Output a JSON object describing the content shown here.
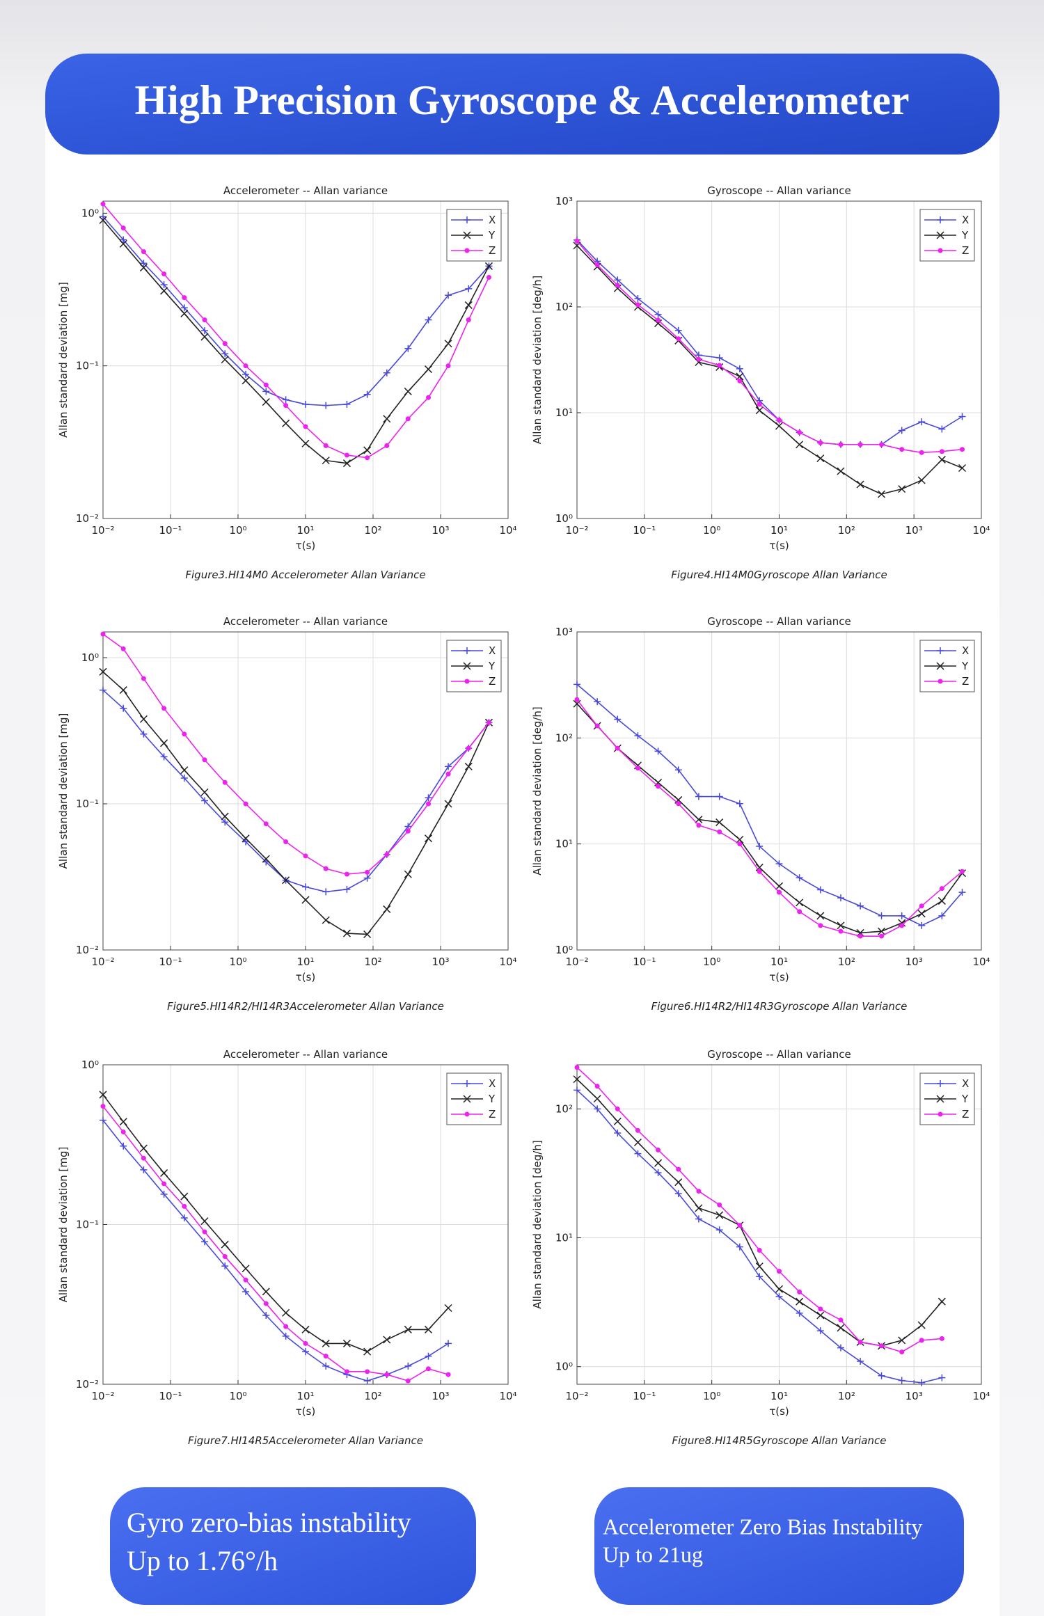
{
  "header": {
    "title": "High Precision Gyroscope & Accelerometer"
  },
  "chart_data": [
    {
      "type": "line",
      "title": "Accelerometer -- Allan variance",
      "xlabel": "τ(s)",
      "ylabel": "Allan standard deviation [mg]",
      "caption": "Figure3.HI14M0 Accelerometer Allan Variance",
      "xscale": "log",
      "yscale": "log",
      "grid": true,
      "legend": "upper right",
      "xlim": [
        0.01,
        10000
      ],
      "ylim": [
        0.01,
        1.2
      ],
      "xticks": [
        {
          "value": 0.01,
          "label": "10⁻²"
        },
        {
          "value": 0.1,
          "label": "10⁻¹"
        },
        {
          "value": 1,
          "label": "10⁰"
        },
        {
          "value": 10,
          "label": "10¹"
        },
        {
          "value": 100,
          "label": "10²"
        },
        {
          "value": 1000,
          "label": "10³"
        },
        {
          "value": 10000,
          "label": "10⁴"
        }
      ],
      "yticks": [
        {
          "value": 0.01,
          "label": "10⁻²"
        },
        {
          "value": 0.1,
          "label": "10⁻¹"
        },
        {
          "value": 1,
          "label": "10⁰"
        }
      ],
      "x": [
        0.01,
        0.02,
        0.04,
        0.08,
        0.16,
        0.32,
        0.64,
        1.3,
        2.6,
        5.1,
        10,
        20,
        41,
        82,
        160,
        330,
        660,
        1300,
        2600,
        5200
      ],
      "series": [
        {
          "name": "X",
          "color": "#4848dc",
          "marker": "+",
          "values": [
            0.95,
            0.67,
            0.47,
            0.34,
            0.24,
            0.17,
            0.12,
            0.088,
            0.068,
            0.06,
            0.056,
            0.055,
            0.056,
            0.065,
            0.09,
            0.13,
            0.2,
            0.29,
            0.32,
            0.45
          ]
        },
        {
          "name": "Y",
          "color": "#222222",
          "marker": "x",
          "values": [
            0.9,
            0.63,
            0.44,
            0.31,
            0.22,
            0.155,
            0.11,
            0.08,
            0.058,
            0.042,
            0.031,
            0.024,
            0.023,
            0.028,
            0.045,
            0.068,
            0.095,
            0.14,
            0.25,
            0.45
          ]
        },
        {
          "name": "Z",
          "color": "#ee22ee",
          "marker": "*",
          "values": [
            1.15,
            0.8,
            0.56,
            0.4,
            0.28,
            0.2,
            0.14,
            0.1,
            0.075,
            0.055,
            0.04,
            0.03,
            0.026,
            0.025,
            0.03,
            0.045,
            0.062,
            0.1,
            0.2,
            0.38
          ]
        }
      ]
    },
    {
      "type": "line",
      "title": "Gyroscope -- Allan variance",
      "xlabel": "τ(s)",
      "ylabel": "Allan standard deviation [deg/h]",
      "caption": "Figure4.HI14M0Gyroscope Allan Variance",
      "xscale": "log",
      "yscale": "log",
      "grid": true,
      "legend": "upper right",
      "xlim": [
        0.01,
        10000
      ],
      "ylim": [
        1,
        1000
      ],
      "xticks": [
        {
          "value": 0.01,
          "label": "10⁻²"
        },
        {
          "value": 0.1,
          "label": "10⁻¹"
        },
        {
          "value": 1,
          "label": "10⁰"
        },
        {
          "value": 10,
          "label": "10¹"
        },
        {
          "value": 100,
          "label": "10²"
        },
        {
          "value": 1000,
          "label": "10³"
        },
        {
          "value": 10000,
          "label": "10⁴"
        }
      ],
      "yticks": [
        {
          "value": 1,
          "label": "10⁰"
        },
        {
          "value": 10,
          "label": "10¹"
        },
        {
          "value": 100,
          "label": "10²"
        },
        {
          "value": 1000,
          "label": "10³"
        }
      ],
      "x": [
        0.01,
        0.02,
        0.04,
        0.08,
        0.16,
        0.32,
        0.64,
        1.3,
        2.6,
        5.1,
        10,
        20,
        41,
        82,
        160,
        330,
        660,
        1300,
        2600,
        5200
      ],
      "series": [
        {
          "name": "X",
          "color": "#4848dc",
          "marker": "+",
          "values": [
            430,
            270,
            180,
            120,
            85,
            60,
            35,
            33,
            26,
            13,
            8.5,
            6.5,
            5.2,
            5,
            5,
            5,
            6.8,
            8.2,
            7,
            9.2
          ]
        },
        {
          "name": "Y",
          "color": "#222222",
          "marker": "x",
          "values": [
            380,
            240,
            150,
            100,
            70,
            48,
            30,
            27,
            22,
            10.5,
            7.5,
            5,
            3.7,
            2.8,
            2.1,
            1.7,
            1.9,
            2.3,
            3.6,
            3
          ]
        },
        {
          "name": "Z",
          "color": "#ee22ee",
          "marker": "*",
          "values": [
            420,
            250,
            160,
            105,
            75,
            50,
            32,
            28,
            20,
            12,
            8.5,
            6.5,
            5.2,
            5,
            5,
            5,
            4.5,
            4.2,
            4.3,
            4.5
          ]
        }
      ]
    },
    {
      "type": "line",
      "title": "Accelerometer -- Allan variance",
      "xlabel": "τ(s)",
      "ylabel": "Allan standard deviation [mg]",
      "caption": "Figure5.HI14R2/HI14R3Accelerometer Allan Variance",
      "xscale": "log",
      "yscale": "log",
      "grid": true,
      "legend": "upper right",
      "xlim": [
        0.01,
        10000
      ],
      "ylim": [
        0.01,
        1.5
      ],
      "xticks": [
        {
          "value": 0.01,
          "label": "10⁻²"
        },
        {
          "value": 0.1,
          "label": "10⁻¹"
        },
        {
          "value": 1,
          "label": "10⁰"
        },
        {
          "value": 10,
          "label": "10¹"
        },
        {
          "value": 100,
          "label": "10²"
        },
        {
          "value": 1000,
          "label": "10³"
        },
        {
          "value": 10000,
          "label": "10⁴"
        }
      ],
      "yticks": [
        {
          "value": 0.01,
          "label": "10⁻²"
        },
        {
          "value": 0.1,
          "label": "10⁻¹"
        },
        {
          "value": 1,
          "label": "10⁰"
        }
      ],
      "x": [
        0.01,
        0.02,
        0.04,
        0.08,
        0.16,
        0.32,
        0.64,
        1.3,
        2.6,
        5.1,
        10,
        20,
        41,
        82,
        160,
        330,
        660,
        1300,
        2600,
        5200
      ],
      "series": [
        {
          "name": "X",
          "color": "#4848dc",
          "marker": "+",
          "values": [
            0.6,
            0.45,
            0.3,
            0.21,
            0.15,
            0.105,
            0.075,
            0.055,
            0.04,
            0.03,
            0.027,
            0.025,
            0.026,
            0.031,
            0.045,
            0.07,
            0.11,
            0.18,
            0.24,
            0.36
          ]
        },
        {
          "name": "Y",
          "color": "#222222",
          "marker": "x",
          "values": [
            0.8,
            0.6,
            0.38,
            0.26,
            0.17,
            0.12,
            0.082,
            0.058,
            0.042,
            0.03,
            0.022,
            0.016,
            0.013,
            0.0128,
            0.019,
            0.033,
            0.058,
            0.1,
            0.18,
            0.36
          ]
        },
        {
          "name": "Z",
          "color": "#ee22ee",
          "marker": "*",
          "values": [
            1.45,
            1.15,
            0.72,
            0.45,
            0.3,
            0.2,
            0.14,
            0.1,
            0.073,
            0.055,
            0.044,
            0.036,
            0.033,
            0.034,
            0.045,
            0.065,
            0.1,
            0.16,
            0.24,
            0.36
          ]
        }
      ]
    },
    {
      "type": "line",
      "title": "Gyroscope -- Allan variance",
      "xlabel": "τ(s)",
      "ylabel": "Allan standard deviation [deg/h]",
      "caption": "Figure6.HI14R2/HI14R3Gyroscope Allan Variance",
      "xscale": "log",
      "yscale": "log",
      "grid": true,
      "legend": "upper right",
      "xlim": [
        0.01,
        10000
      ],
      "ylim": [
        1,
        1000
      ],
      "xticks": [
        {
          "value": 0.01,
          "label": "10⁻²"
        },
        {
          "value": 0.1,
          "label": "10⁻¹"
        },
        {
          "value": 1,
          "label": "10⁰"
        },
        {
          "value": 10,
          "label": "10¹"
        },
        {
          "value": 100,
          "label": "10²"
        },
        {
          "value": 1000,
          "label": "10³"
        },
        {
          "value": 10000,
          "label": "10⁴"
        }
      ],
      "yticks": [
        {
          "value": 1,
          "label": "10⁰"
        },
        {
          "value": 10,
          "label": "10¹"
        },
        {
          "value": 100,
          "label": "10²"
        },
        {
          "value": 1000,
          "label": "10³"
        }
      ],
      "x": [
        0.01,
        0.02,
        0.04,
        0.08,
        0.16,
        0.32,
        0.64,
        1.3,
        2.6,
        5.1,
        10,
        20,
        41,
        82,
        160,
        330,
        660,
        1300,
        2600,
        5200
      ],
      "series": [
        {
          "name": "X",
          "color": "#4848dc",
          "marker": "+",
          "values": [
            320,
            220,
            150,
            105,
            75,
            50,
            28,
            28,
            24,
            9.5,
            6.5,
            4.8,
            3.7,
            3.1,
            2.6,
            2.1,
            2.1,
            1.7,
            2.1,
            3.5
          ]
        },
        {
          "name": "Y",
          "color": "#222222",
          "marker": "x",
          "values": [
            210,
            130,
            80,
            55,
            38,
            26,
            17,
            16,
            11,
            6,
            4,
            2.8,
            2.1,
            1.7,
            1.45,
            1.5,
            1.8,
            2.2,
            2.9,
            5.3
          ]
        },
        {
          "name": "Z",
          "color": "#ee22ee",
          "marker": "*",
          "values": [
            230,
            130,
            80,
            52,
            35,
            24,
            15,
            13,
            10,
            5.5,
            3.5,
            2.3,
            1.7,
            1.5,
            1.35,
            1.35,
            1.7,
            2.6,
            3.8,
            5.5
          ]
        }
      ]
    },
    {
      "type": "line",
      "title": "Accelerometer -- Allan variance",
      "xlabel": "τ(s)",
      "ylabel": "Allan standard deviation [mg]",
      "caption": "Figure7.HI14R5Accelerometer Allan Variance",
      "xscale": "log",
      "yscale": "log",
      "grid": true,
      "legend": "upper right",
      "xlim": [
        0.01,
        10000
      ],
      "ylim": [
        0.01,
        1
      ],
      "xticks": [
        {
          "value": 0.01,
          "label": "10⁻²"
        },
        {
          "value": 0.1,
          "label": "10⁻¹"
        },
        {
          "value": 1,
          "label": "10⁰"
        },
        {
          "value": 10,
          "label": "10¹"
        },
        {
          "value": 100,
          "label": "10²"
        },
        {
          "value": 1000,
          "label": "10³"
        },
        {
          "value": 10000,
          "label": "10⁴"
        }
      ],
      "yticks": [
        {
          "value": 0.01,
          "label": "10⁻²"
        },
        {
          "value": 0.1,
          "label": "10⁻¹"
        },
        {
          "value": 1,
          "label": "10⁰"
        }
      ],
      "x": [
        0.01,
        0.02,
        0.04,
        0.08,
        0.16,
        0.32,
        0.64,
        1.3,
        2.6,
        5.1,
        10,
        20,
        41,
        82,
        160,
        330,
        660,
        1300
      ],
      "series": [
        {
          "name": "X",
          "color": "#4848dc",
          "marker": "+",
          "values": [
            0.45,
            0.31,
            0.22,
            0.155,
            0.11,
            0.078,
            0.055,
            0.038,
            0.027,
            0.02,
            0.016,
            0.013,
            0.0115,
            0.0105,
            0.0115,
            0.013,
            0.015,
            0.018
          ]
        },
        {
          "name": "Y",
          "color": "#222222",
          "marker": "x",
          "values": [
            0.65,
            0.44,
            0.3,
            0.21,
            0.15,
            0.105,
            0.075,
            0.053,
            0.038,
            0.028,
            0.022,
            0.018,
            0.018,
            0.016,
            0.019,
            0.022,
            0.022,
            0.03
          ]
        },
        {
          "name": "Z",
          "color": "#ee22ee",
          "marker": "*",
          "values": [
            0.55,
            0.38,
            0.26,
            0.18,
            0.13,
            0.09,
            0.063,
            0.045,
            0.032,
            0.023,
            0.018,
            0.015,
            0.012,
            0.012,
            0.0115,
            0.0105,
            0.0125,
            0.0115
          ]
        }
      ]
    },
    {
      "type": "line",
      "title": "Gyroscope -- Allan variance",
      "xlabel": "τ(s)",
      "ylabel": "Allan standard deviation [deg/h]",
      "caption": "Figure8.HI14R5Gyroscope Allan Variance",
      "xscale": "log",
      "yscale": "log",
      "grid": true,
      "legend": "upper right",
      "xlim": [
        0.01,
        10000
      ],
      "ylim": [
        0.73,
        220
      ],
      "xticks": [
        {
          "value": 0.01,
          "label": "10⁻²"
        },
        {
          "value": 0.1,
          "label": "10⁻¹"
        },
        {
          "value": 1,
          "label": "10⁰"
        },
        {
          "value": 10,
          "label": "10¹"
        },
        {
          "value": 100,
          "label": "10²"
        },
        {
          "value": 1000,
          "label": "10³"
        },
        {
          "value": 10000,
          "label": "10⁴"
        }
      ],
      "yticks": [
        {
          "value": 1,
          "label": "10⁰"
        },
        {
          "value": 10,
          "label": "10¹"
        },
        {
          "value": 100,
          "label": "10²"
        }
      ],
      "x": [
        0.01,
        0.02,
        0.04,
        0.08,
        0.16,
        0.32,
        0.64,
        1.3,
        2.6,
        5.1,
        10,
        20,
        41,
        82,
        160,
        330,
        660,
        1300,
        2600
      ],
      "series": [
        {
          "name": "X",
          "color": "#4848dc",
          "marker": "+",
          "values": [
            140,
            100,
            65,
            45,
            32,
            22,
            14,
            11.5,
            8.5,
            5,
            3.5,
            2.6,
            1.9,
            1.4,
            1.1,
            0.85,
            0.78,
            0.75,
            0.82
          ]
        },
        {
          "name": "Y",
          "color": "#222222",
          "marker": "x",
          "values": [
            170,
            120,
            80,
            55,
            38,
            27,
            17,
            15,
            12.5,
            6,
            4,
            3.2,
            2.5,
            2,
            1.55,
            1.45,
            1.6,
            2.1,
            3.2
          ]
        },
        {
          "name": "Z",
          "color": "#ee22ee",
          "marker": "*",
          "values": [
            210,
            150,
            100,
            68,
            48,
            34,
            23,
            18,
            12.5,
            8,
            5.5,
            3.8,
            2.8,
            2.3,
            1.55,
            1.45,
            1.3,
            1.6,
            1.65
          ]
        }
      ]
    }
  ],
  "badges": [
    {
      "lines": [
        "Gyro zero-bias instability",
        "Up to 1.76°/h"
      ]
    },
    {
      "lines": [
        "Accelerometer Zero Bias Instability",
        "Up to 21ug"
      ]
    }
  ]
}
